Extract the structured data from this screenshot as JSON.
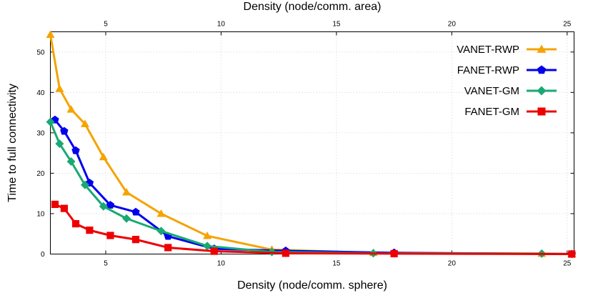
{
  "chart_data": {
    "type": "line",
    "xlabel": "Density (node/comm. sphere)",
    "x2label": "Density (node/comm. area)",
    "ylabel": "Time to full connectivity",
    "xlim": [
      2.6,
      25.3
    ],
    "ylim": [
      0,
      55
    ],
    "xticks": [
      5,
      10,
      15,
      20,
      25
    ],
    "x2ticks": [
      5,
      10,
      15,
      20,
      25
    ],
    "yticks": [
      0,
      10,
      20,
      30,
      40,
      50
    ],
    "grid": true,
    "legend_position": "top-right",
    "series": [
      {
        "name": "VANET-RWP",
        "color": "#f5a300",
        "marker": "triangle",
        "points": [
          [
            2.6,
            54.3
          ],
          [
            3.0,
            40.9
          ],
          [
            3.5,
            35.8
          ],
          [
            4.1,
            32.2
          ],
          [
            4.9,
            24.0
          ],
          [
            5.9,
            15.3
          ],
          [
            7.4,
            10.0
          ],
          [
            9.4,
            4.5
          ],
          [
            12.2,
            1.1
          ],
          [
            16.6,
            0.3
          ],
          [
            23.9,
            0.1
          ],
          [
            25.2,
            0.0
          ]
        ]
      },
      {
        "name": "FANET-RWP",
        "color": "#0000ee",
        "marker": "pentagon",
        "points": [
          [
            2.8,
            33.2
          ],
          [
            3.2,
            30.4
          ],
          [
            3.7,
            25.6
          ],
          [
            4.3,
            17.6
          ],
          [
            5.2,
            12.1
          ],
          [
            6.3,
            10.4
          ],
          [
            7.7,
            4.4
          ],
          [
            9.7,
            1.3
          ],
          [
            12.8,
            0.8
          ],
          [
            17.5,
            0.3
          ],
          [
            25.2,
            0.0
          ]
        ]
      },
      {
        "name": "VANET-GM",
        "color": "#19a974",
        "marker": "diamond",
        "points": [
          [
            2.6,
            32.7
          ],
          [
            3.0,
            27.3
          ],
          [
            3.5,
            22.9
          ],
          [
            4.1,
            17.1
          ],
          [
            4.9,
            11.8
          ],
          [
            5.9,
            8.8
          ],
          [
            7.4,
            5.7
          ],
          [
            9.4,
            2.0
          ],
          [
            12.2,
            0.5
          ],
          [
            16.6,
            0.2
          ],
          [
            23.9,
            0.1
          ],
          [
            25.2,
            0.0
          ]
        ]
      },
      {
        "name": "FANET-GM",
        "color": "#ee0000",
        "marker": "square",
        "points": [
          [
            2.8,
            12.3
          ],
          [
            3.2,
            11.3
          ],
          [
            3.7,
            7.5
          ],
          [
            4.3,
            5.9
          ],
          [
            5.2,
            4.6
          ],
          [
            6.3,
            3.6
          ],
          [
            7.7,
            1.6
          ],
          [
            9.7,
            0.7
          ],
          [
            12.8,
            0.2
          ],
          [
            17.5,
            0.1
          ],
          [
            25.2,
            0.0
          ]
        ]
      }
    ]
  }
}
